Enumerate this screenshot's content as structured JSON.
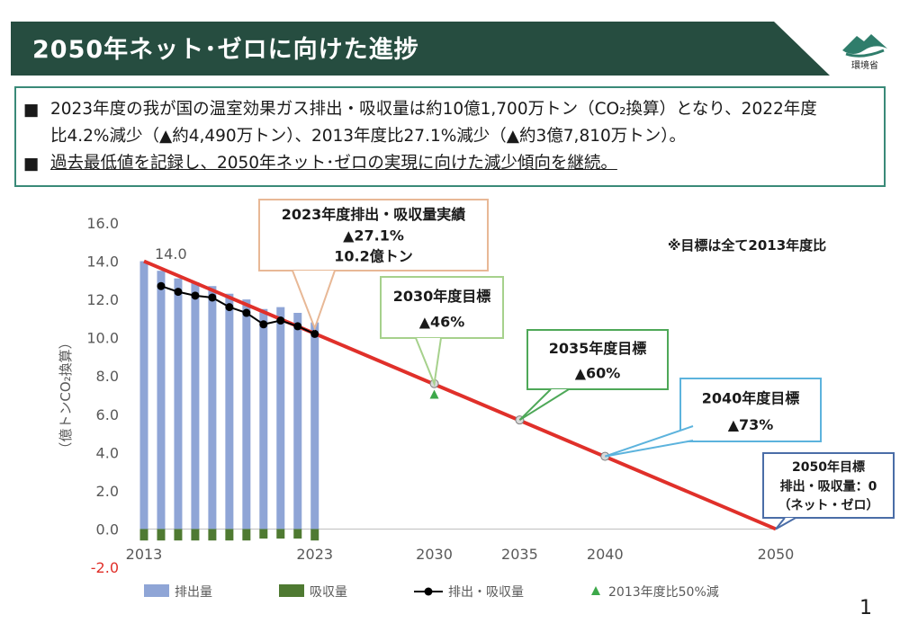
{
  "header": {
    "title": "2050年ネット･ゼロに向けた進捗"
  },
  "logo": {
    "text": "環境省"
  },
  "summary": {
    "line1": "2023年度の我が国の温室効果ガス排出・吸収量は約10億1,700万トン（CO₂換算）となり、2022年度",
    "line2": "比4.2%減少（▲約4,490万トン）、2013年度比27.1%減少（▲約3億7,810万トン）。",
    "line3": "過去最低値を記録し、2050年ネット･ゼロの実現に向けた減少傾向を継続。"
  },
  "page_number": "1",
  "chart_data": {
    "type": "bar",
    "ylabel": "（億トンCO₂換算）",
    "ylim": [
      -2.0,
      16.0
    ],
    "yticks": [
      "16.0",
      "14.0",
      "12.0",
      "10.0",
      "8.0",
      "6.0",
      "4.0",
      "2.0",
      "0.0",
      "-2.0"
    ],
    "xlim": [
      2013,
      2050
    ],
    "xticks": [
      "2013",
      "2023",
      "2030",
      "2035",
      "2040",
      "2050"
    ],
    "grid": false,
    "legend_position": "bottom",
    "colors": {
      "emissions": "#8fa5d6",
      "absorption": "#4f7a32",
      "net": "#000000",
      "target_line": "#e0302a",
      "marker": "#3da84a"
    },
    "series": [
      {
        "name": "排出量",
        "type": "bar",
        "x": [
          2013,
          2014,
          2015,
          2016,
          2017,
          2018,
          2019,
          2020,
          2021,
          2022,
          2023
        ],
        "values": [
          14.0,
          13.5,
          13.1,
          12.9,
          12.7,
          12.3,
          12.0,
          11.5,
          11.6,
          11.3,
          10.8
        ]
      },
      {
        "name": "吸収量",
        "type": "bar",
        "x": [
          2013,
          2014,
          2015,
          2016,
          2017,
          2018,
          2019,
          2020,
          2021,
          2022,
          2023
        ],
        "values": [
          -0.6,
          -0.6,
          -0.6,
          -0.6,
          -0.6,
          -0.6,
          -0.6,
          -0.5,
          -0.5,
          -0.5,
          -0.6
        ]
      },
      {
        "name": "排出・吸収量",
        "type": "line",
        "x": [
          2014,
          2015,
          2016,
          2017,
          2018,
          2019,
          2020,
          2021,
          2022,
          2023
        ],
        "values": [
          12.7,
          12.4,
          12.2,
          12.1,
          11.6,
          11.3,
          10.7,
          10.9,
          10.6,
          10.2
        ]
      },
      {
        "name": "2013年度比50%減",
        "type": "marker",
        "x": [
          2030
        ],
        "values": [
          7.0
        ]
      }
    ],
    "target_line": {
      "x": [
        2013,
        2050
      ],
      "values": [
        14.0,
        0.0
      ]
    },
    "target_points": [
      {
        "x": 2030,
        "value": 7.6
      },
      {
        "x": 2035,
        "value": 5.7
      },
      {
        "x": 2040,
        "value": 3.8
      }
    ],
    "annotations": {
      "start_label": "14.0",
      "note": "※目標は全て2013年度比",
      "callout_2023": [
        "2023年度排出・吸収量実績",
        "▲27.1%",
        "10.2億トン"
      ],
      "callout_2030": [
        "2030年度目標",
        "▲46%"
      ],
      "callout_2035": [
        "2035年度目標",
        "▲60%"
      ],
      "callout_2040": [
        "2040年度目標",
        "▲73%"
      ],
      "callout_2050": [
        "2050年目標",
        "排出・吸収量：0",
        "（ネット・ゼロ）"
      ]
    }
  }
}
